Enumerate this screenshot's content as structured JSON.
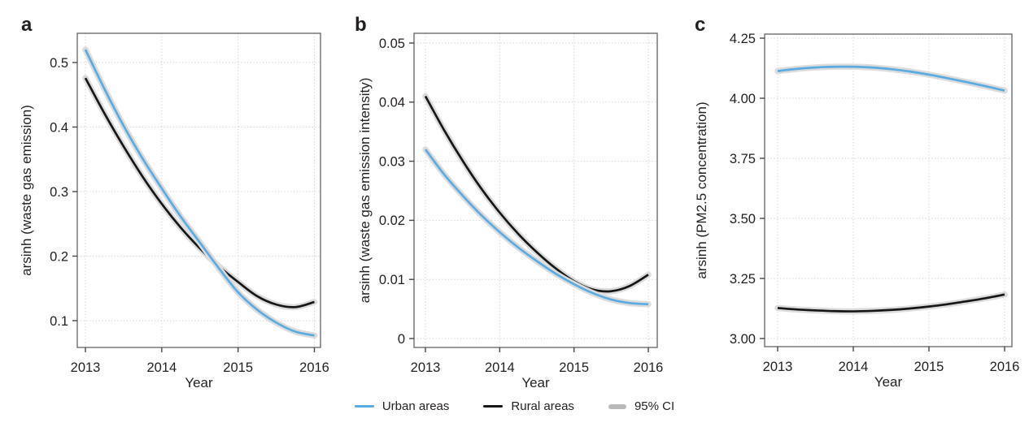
{
  "figure": {
    "xlabel": "Year",
    "legend": [
      {
        "id": "urban",
        "label": "Urban areas",
        "swatch": "line",
        "color": "#5AABE1"
      },
      {
        "id": "rural",
        "label": "Rural areas",
        "swatch": "line",
        "color": "#161616"
      },
      {
        "id": "ci",
        "label": "95% CI",
        "swatch": "band",
        "color": "#b9b9b9"
      }
    ],
    "colors": {
      "urban_line": "#5AABE1",
      "rural_line": "#161616",
      "ci_band": "#dcdcdc",
      "grid": "#cfcfcf",
      "frame": "#6d6e70",
      "tick": "#48484a",
      "text": "#231f20"
    }
  },
  "chart_data": [
    {
      "type": "line",
      "panel_label": "a",
      "title": "",
      "xlabel": "Year",
      "ylabel": "arsinh (waste gas emission)",
      "xlim": [
        2013,
        2016
      ],
      "ylim": [
        0.058,
        0.545
      ],
      "grid": "dotted",
      "legend_position": "bottom-shared",
      "x_ticks": [
        2013,
        2014,
        2015,
        2016
      ],
      "x_tick_labels": [
        "2013",
        "2014",
        "2015",
        "2016"
      ],
      "y_ticks": [
        0.1,
        0.2,
        0.3,
        0.4,
        0.5
      ],
      "y_tick_labels": [
        "0.1",
        "0.2",
        "0.3",
        "0.4",
        "0.5"
      ],
      "x": [
        2013,
        2013.25,
        2013.5,
        2013.75,
        2014,
        2014.25,
        2014.5,
        2014.75,
        2015,
        2015.25,
        2015.5,
        2015.75,
        2016
      ],
      "series": [
        {
          "name": "Urban areas",
          "color": "#5AABE1",
          "values": [
            0.52,
            0.459,
            0.402,
            0.351,
            0.305,
            0.261,
            0.221,
            0.181,
            0.144,
            0.117,
            0.097,
            0.083,
            0.077
          ]
        },
        {
          "name": "Rural areas",
          "color": "#161616",
          "values": [
            0.476,
            0.421,
            0.37,
            0.323,
            0.281,
            0.244,
            0.212,
            0.184,
            0.16,
            0.138,
            0.125,
            0.121,
            0.129
          ]
        }
      ],
      "ci": "95% CI shown as gray band around each line"
    },
    {
      "type": "line",
      "panel_label": "b",
      "title": "",
      "xlabel": "Year",
      "ylabel": "arsinh (waste gas emission intensity)",
      "xlim": [
        2013,
        2016
      ],
      "ylim": [
        -0.0015,
        0.0517
      ],
      "grid": "dotted",
      "legend_position": "bottom-shared",
      "x_ticks": [
        2013,
        2014,
        2015,
        2016
      ],
      "x_tick_labels": [
        "2013",
        "2014",
        "2015",
        "2016"
      ],
      "y_ticks": [
        0,
        0.01,
        0.02,
        0.03,
        0.04,
        0.05
      ],
      "y_tick_labels": [
        "0",
        "0.01",
        "0.02",
        "0.03",
        "0.04",
        "0.05"
      ],
      "x": [
        2013,
        2013.25,
        2013.5,
        2013.75,
        2014,
        2014.25,
        2014.5,
        2014.75,
        2015,
        2015.25,
        2015.5,
        2015.75,
        2016
      ],
      "series": [
        {
          "name": "Urban areas",
          "color": "#5AABE1",
          "values": [
            0.032,
            0.0278,
            0.0242,
            0.0209,
            0.018,
            0.0154,
            0.0131,
            0.011,
            0.0092,
            0.0077,
            0.0066,
            0.006,
            0.0058
          ]
        },
        {
          "name": "Rural areas",
          "color": "#161616",
          "values": [
            0.041,
            0.0353,
            0.0301,
            0.0254,
            0.0213,
            0.0177,
            0.0146,
            0.0119,
            0.0097,
            0.0083,
            0.008,
            0.0089,
            0.0108
          ]
        }
      ],
      "ci": "95% CI shown as gray band around each line"
    },
    {
      "type": "line",
      "panel_label": "c",
      "title": "",
      "xlabel": "Year",
      "ylabel": "arsinh (PM2.5 concentration)",
      "xlim": [
        2013,
        2016
      ],
      "ylim": [
        2.966,
        4.267
      ],
      "grid": "dotted",
      "legend_position": "bottom-shared",
      "x_ticks": [
        2013,
        2014,
        2015,
        2016
      ],
      "x_tick_labels": [
        "2013",
        "2014",
        "2015",
        "2016"
      ],
      "y_ticks": [
        3.0,
        3.25,
        3.5,
        3.75,
        4.0,
        4.25
      ],
      "y_tick_labels": [
        "3.00",
        "3.25",
        "3.50",
        "3.75",
        "4.00",
        "4.25"
      ],
      "x": [
        2013,
        2013.25,
        2013.5,
        2013.75,
        2014,
        2014.25,
        2014.5,
        2014.75,
        2015,
        2015.25,
        2015.5,
        2015.75,
        2016
      ],
      "series": [
        {
          "name": "Urban areas",
          "color": "#5AABE1",
          "values": [
            4.113,
            4.122,
            4.128,
            4.131,
            4.131,
            4.128,
            4.121,
            4.111,
            4.098,
            4.083,
            4.067,
            4.05,
            4.032
          ]
        },
        {
          "name": "Rural areas",
          "color": "#161616",
          "values": [
            3.127,
            3.121,
            3.117,
            3.114,
            3.113,
            3.115,
            3.119,
            3.125,
            3.133,
            3.143,
            3.155,
            3.168,
            3.183
          ]
        }
      ],
      "ci": "95% CI shown as gray band around each line"
    }
  ]
}
